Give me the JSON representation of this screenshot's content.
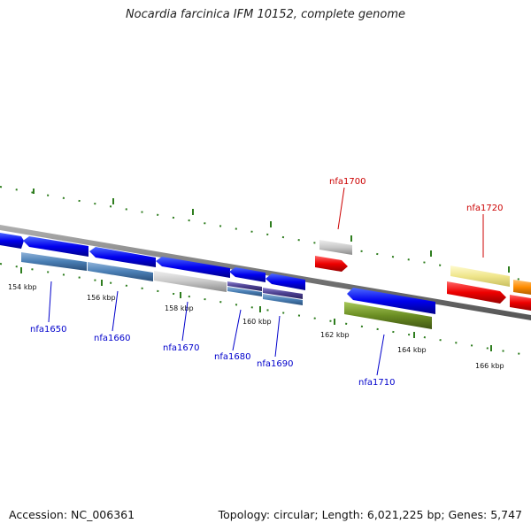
{
  "title": "Nocardia farcinica IFM 10152, complete genome",
  "footer": {
    "accession": "Accession: NC_006361",
    "summary": "Topology: circular; Length: 6,021,225 bp; Genes: 5,747"
  },
  "ticks": [
    "154 kbp",
    "156 kbp",
    "158 kbp",
    "160 kbp",
    "162 kbp",
    "164 kbp",
    "166 kbp"
  ],
  "genes": [
    {
      "name": "nfa1650",
      "color": "#0000cc"
    },
    {
      "name": "nfa1660",
      "color": "#0000cc"
    },
    {
      "name": "nfa1670",
      "color": "#0000cc"
    },
    {
      "name": "nfa1680",
      "color": "#0000cc"
    },
    {
      "name": "nfa1690",
      "color": "#0000cc"
    },
    {
      "name": "nfa1700",
      "color": "#cc0000"
    },
    {
      "name": "nfa1710",
      "color": "#0000cc"
    },
    {
      "name": "nfa1720",
      "color": "#cc0000"
    }
  ],
  "colors": {
    "backbone": "#8c8c8c",
    "tick": "#2e7d1e",
    "cds_blue": "#0000ee",
    "cds_red": "#ee0000",
    "cog_steelblue": "#4a7fb5",
    "cog_gray": "#c8c8c8",
    "cog_purple": "#4b3f8f",
    "cog_green": "#6b8e23",
    "cog_yellow": "#f0e68c",
    "cds_orange": "#ff8c00"
  }
}
